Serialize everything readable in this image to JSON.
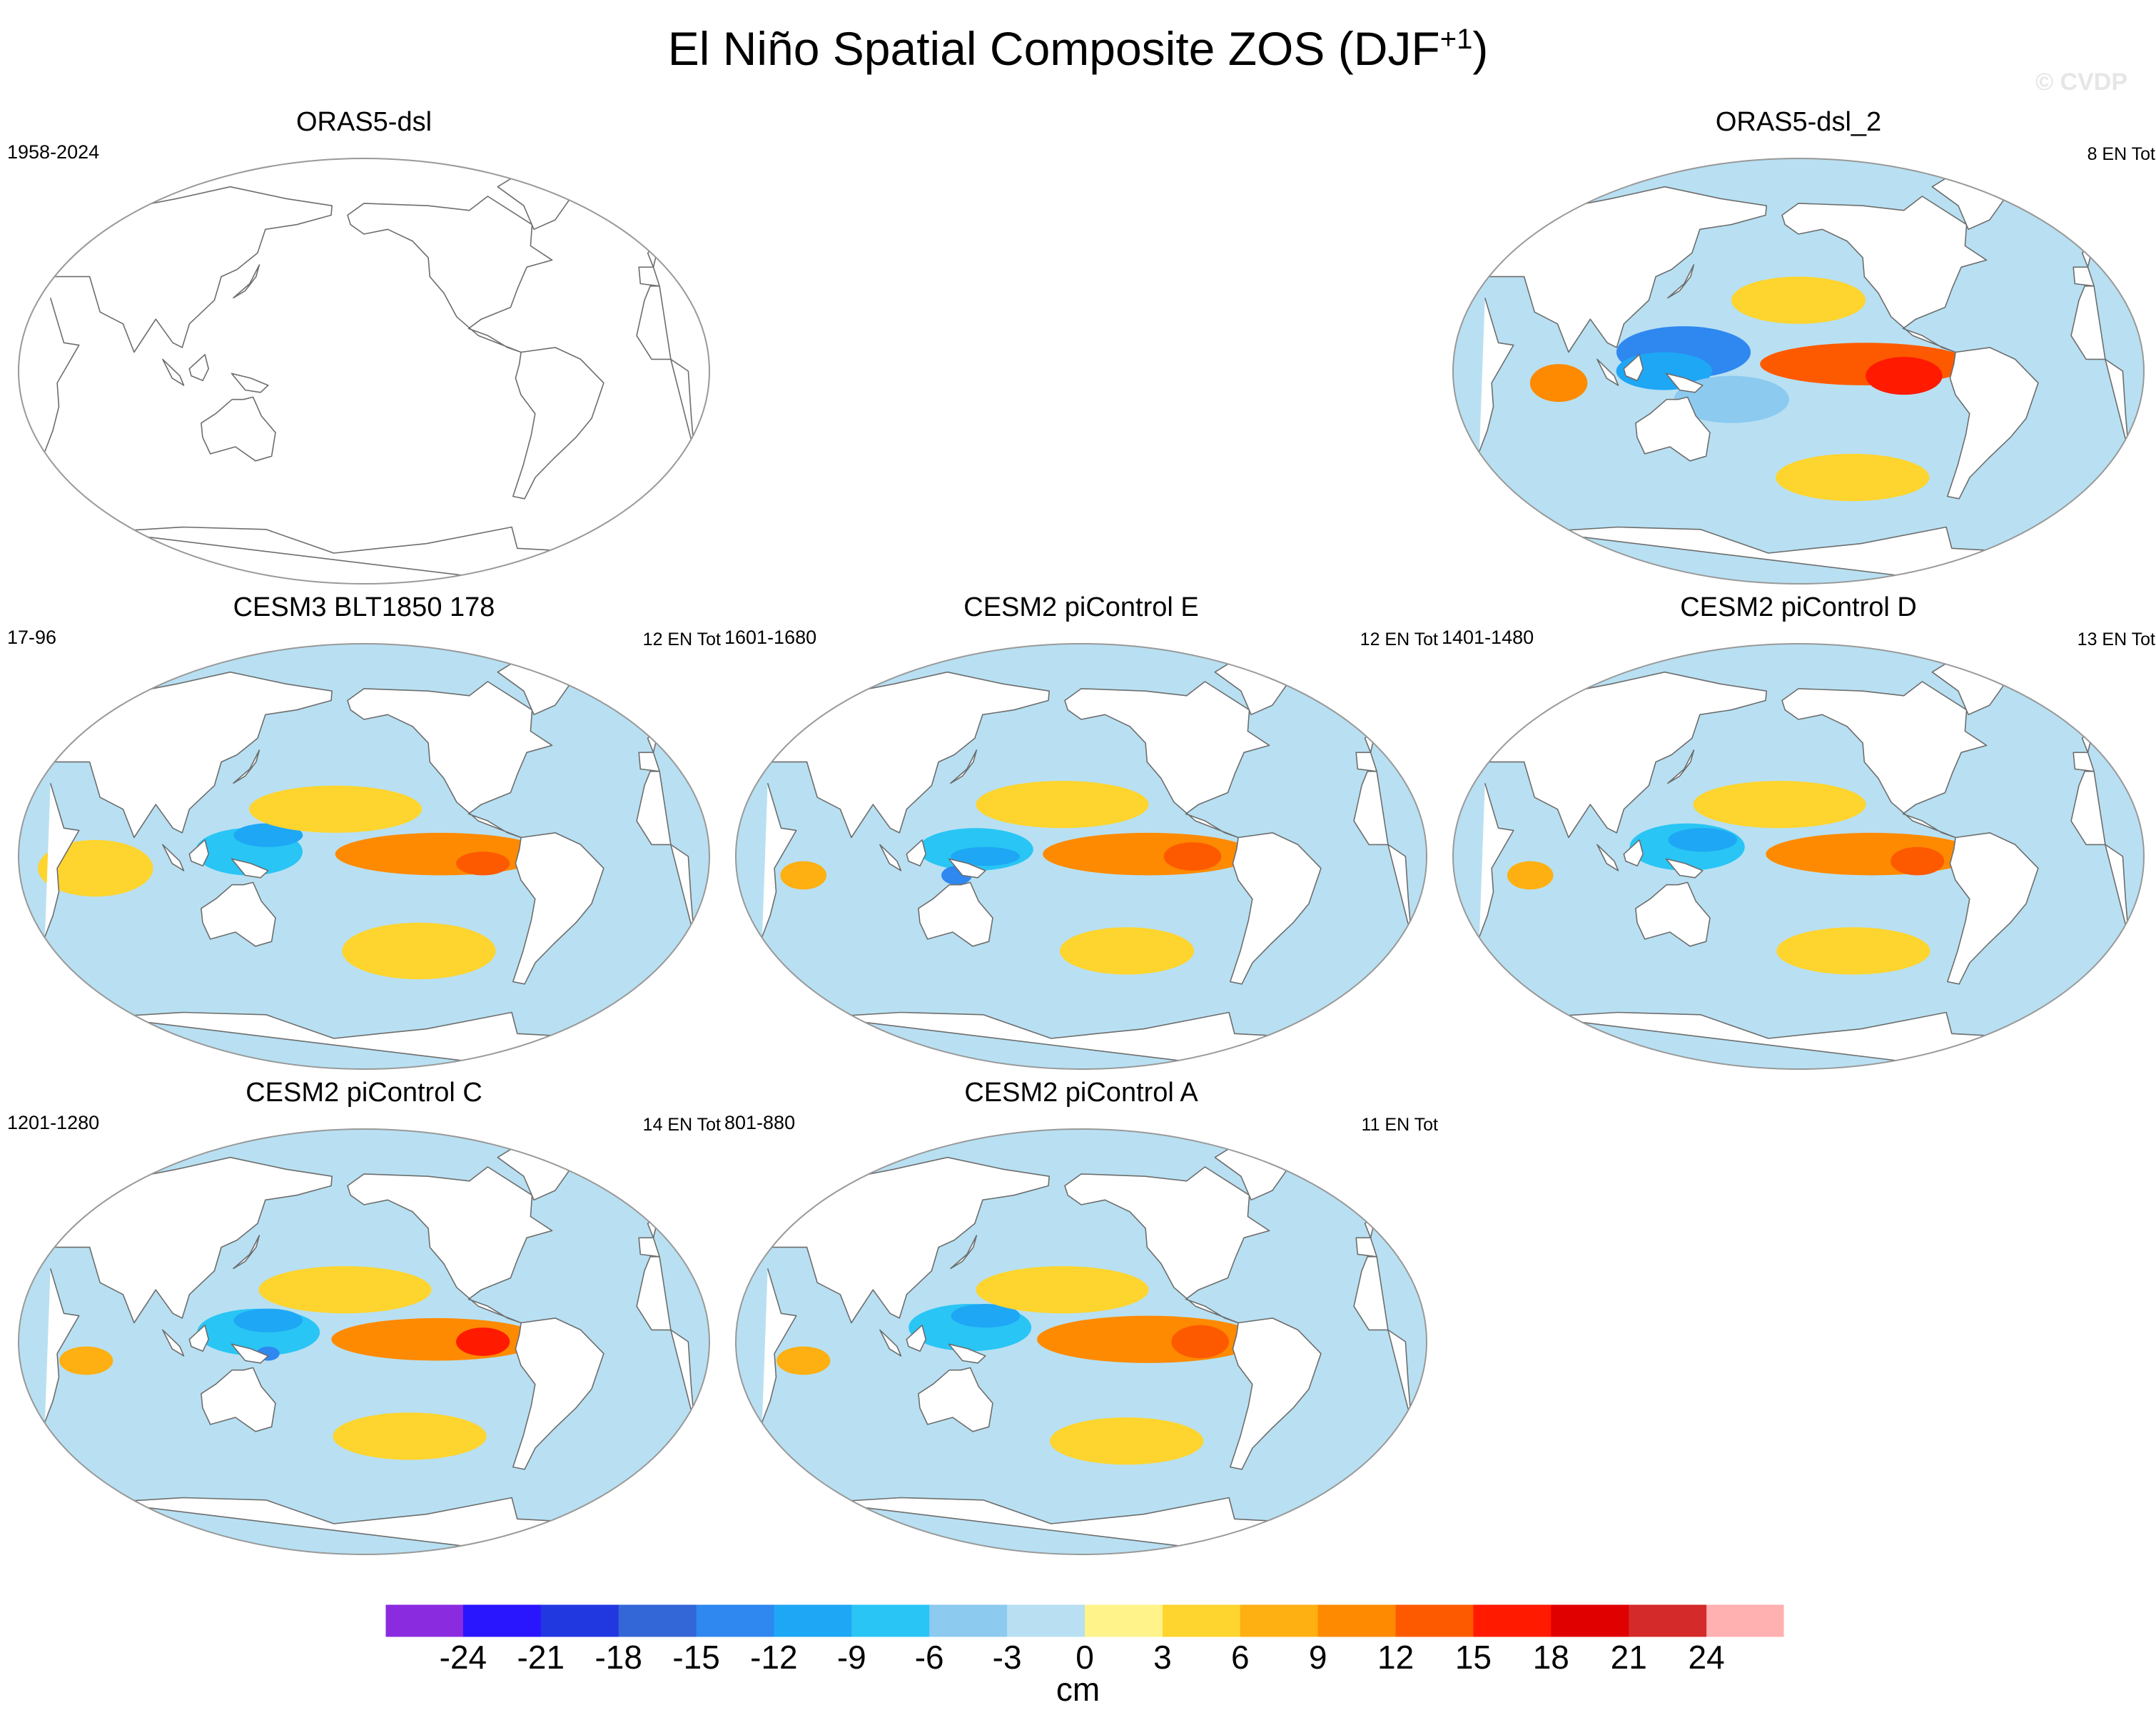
{
  "title": "El Niño Spatial Composite ZOS (DJF",
  "title_sup": "+1",
  "title_close": ")",
  "watermark": "© CVDP",
  "units": "cm",
  "colors": {
    "levels": [
      "#8b2be0",
      "#2a15ff",
      "#2138e0",
      "#3366d6",
      "#2f87f0",
      "#1ea7f5",
      "#29c5f5",
      "#8ccaf0",
      "#b8e0f2",
      "#fff38a",
      "#fed42e",
      "#feaf11",
      "#fd8a00",
      "#fd5a00",
      "#ff1a00",
      "#e00000",
      "#d42a2a",
      "#ffb0b0"
    ],
    "land": "#ffffff",
    "coast": "#6d6d6d",
    "frame": "#999999"
  },
  "chart_data": {
    "type": "heatmap",
    "projection": "robinson",
    "variable": "ZOS",
    "season": "DJF+1",
    "colorbar": {
      "ticks": [
        -24,
        -21,
        -18,
        -15,
        -12,
        -9,
        -6,
        -3,
        0,
        3,
        6,
        9,
        12,
        15,
        18,
        21,
        24
      ],
      "labels": [
        "-24",
        "-21",
        "-18",
        "-15",
        "-12",
        "-9",
        "-6",
        "-3",
        "0",
        "3",
        "6",
        "9",
        "12",
        "15",
        "18",
        "21",
        "24"
      ],
      "units": "cm"
    },
    "panels": [
      {
        "name": "ORAS5-dsl",
        "left": "1958-2024",
        "right": "",
        "empty": true,
        "features": []
      },
      {
        "name": "ORAS5-dsl_2",
        "left": "",
        "right": "8 EN Tot",
        "empty": false,
        "features": [
          {
            "lon": 235,
            "lat": 3,
            "value": 12,
            "wlon": 55,
            "wlat": 9
          },
          {
            "lon": 255,
            "lat": -2,
            "value": 15,
            "wlon": 20,
            "wlat": 8
          },
          {
            "lon": 140,
            "lat": 8,
            "value": -15,
            "wlon": 35,
            "wlat": 11
          },
          {
            "lon": 130,
            "lat": 0,
            "value": -12,
            "wlon": 25,
            "wlat": 8
          },
          {
            "lon": 165,
            "lat": -12,
            "value": -6,
            "wlon": 30,
            "wlat": 10
          },
          {
            "lon": 75,
            "lat": -5,
            "value": 9,
            "wlon": 15,
            "wlat": 8
          },
          {
            "lon": 200,
            "lat": 30,
            "value": 3,
            "wlon": 35,
            "wlat": 10
          },
          {
            "lon": 230,
            "lat": -45,
            "value": 3,
            "wlon": 40,
            "wlat": 10
          },
          {
            "lon": 330,
            "lat": -5,
            "value": -3,
            "wlon": 25,
            "wlat": 12
          }
        ]
      },
      {
        "name": "CESM3 BLT1850 178",
        "left": "17-96",
        "right": "12 EN Tot",
        "empty": false,
        "features": [
          {
            "lon": 240,
            "lat": 1,
            "value": 9,
            "wlon": 55,
            "wlat": 9
          },
          {
            "lon": 262,
            "lat": -3,
            "value": 12,
            "wlon": 14,
            "wlat": 5
          },
          {
            "lon": 140,
            "lat": 2,
            "value": -9,
            "wlon": 28,
            "wlat": 10
          },
          {
            "lon": 150,
            "lat": 9,
            "value": -12,
            "wlon": 18,
            "wlat": 5
          },
          {
            "lon": 185,
            "lat": 20,
            "value": 3,
            "wlon": 45,
            "wlat": 10
          },
          {
            "lon": 160,
            "lat": -18,
            "value": -3,
            "wlon": 40,
            "wlat": 10
          },
          {
            "lon": 60,
            "lat": -5,
            "value": 3,
            "wlon": 30,
            "wlat": 12
          },
          {
            "lon": 230,
            "lat": -40,
            "value": 3,
            "wlon": 40,
            "wlat": 12
          }
        ]
      },
      {
        "name": "CESM2 piControl E",
        "left": "1601-1680",
        "right": "12 EN Tot",
        "empty": false,
        "features": [
          {
            "lon": 235,
            "lat": 1,
            "value": 9,
            "wlon": 55,
            "wlat": 9
          },
          {
            "lon": 258,
            "lat": 0,
            "value": 12,
            "wlon": 15,
            "wlat": 6
          },
          {
            "lon": 145,
            "lat": 3,
            "value": -9,
            "wlon": 30,
            "wlat": 9
          },
          {
            "lon": 150,
            "lat": 0,
            "value": -12,
            "wlon": 18,
            "wlat": 4
          },
          {
            "lon": 135,
            "lat": -8,
            "value": -15,
            "wlon": 8,
            "wlat": 4
          },
          {
            "lon": 55,
            "lat": -8,
            "value": 6,
            "wlon": 12,
            "wlat": 6
          },
          {
            "lon": 190,
            "lat": 22,
            "value": 3,
            "wlon": 45,
            "wlat": 10
          },
          {
            "lon": 225,
            "lat": -40,
            "value": 3,
            "wlon": 35,
            "wlat": 10
          }
        ]
      },
      {
        "name": "CESM2 piControl D",
        "left": "1401-1480",
        "right": "13 EN Tot",
        "empty": false,
        "features": [
          {
            "lon": 238,
            "lat": 1,
            "value": 9,
            "wlon": 55,
            "wlat": 9
          },
          {
            "lon": 262,
            "lat": -2,
            "value": 12,
            "wlon": 14,
            "wlat": 6
          },
          {
            "lon": 142,
            "lat": 4,
            "value": -9,
            "wlon": 30,
            "wlat": 10
          },
          {
            "lon": 150,
            "lat": 7,
            "value": -12,
            "wlon": 18,
            "wlat": 5
          },
          {
            "lon": 60,
            "lat": -8,
            "value": 6,
            "wlon": 12,
            "wlat": 6
          },
          {
            "lon": 190,
            "lat": 22,
            "value": 3,
            "wlon": 45,
            "wlat": 10
          },
          {
            "lon": 230,
            "lat": -40,
            "value": 3,
            "wlon": 40,
            "wlat": 10
          }
        ]
      },
      {
        "name": "CESM2 piControl C",
        "left": "1201-1280",
        "right": "14 EN Tot",
        "empty": false,
        "features": [
          {
            "lon": 238,
            "lat": 1,
            "value": 9,
            "wlon": 55,
            "wlat": 9
          },
          {
            "lon": 262,
            "lat": 0,
            "value": 15,
            "wlon": 14,
            "wlat": 6
          },
          {
            "lon": 145,
            "lat": 4,
            "value": -9,
            "wlon": 32,
            "wlat": 10
          },
          {
            "lon": 150,
            "lat": 9,
            "value": -12,
            "wlon": 18,
            "wlat": 5
          },
          {
            "lon": 150,
            "lat": -5,
            "value": -15,
            "wlon": 6,
            "wlat": 3
          },
          {
            "lon": 55,
            "lat": -8,
            "value": 6,
            "wlon": 14,
            "wlat": 6
          },
          {
            "lon": 190,
            "lat": 22,
            "value": 3,
            "wlon": 45,
            "wlat": 10
          },
          {
            "lon": 225,
            "lat": -40,
            "value": 3,
            "wlon": 40,
            "wlat": 10
          }
        ]
      },
      {
        "name": "CESM2 piControl A",
        "left": "801-880",
        "right": "11 EN Tot",
        "empty": false,
        "features": [
          {
            "lon": 235,
            "lat": 1,
            "value": 9,
            "wlon": 58,
            "wlat": 10
          },
          {
            "lon": 262,
            "lat": 0,
            "value": 12,
            "wlon": 15,
            "wlat": 7
          },
          {
            "lon": 142,
            "lat": 6,
            "value": -9,
            "wlon": 32,
            "wlat": 10
          },
          {
            "lon": 150,
            "lat": 11,
            "value": -12,
            "wlon": 18,
            "wlat": 5
          },
          {
            "lon": 55,
            "lat": -8,
            "value": 6,
            "wlon": 14,
            "wlat": 6
          },
          {
            "lon": 190,
            "lat": 22,
            "value": 3,
            "wlon": 45,
            "wlat": 10
          },
          {
            "lon": 225,
            "lat": -42,
            "value": 3,
            "wlon": 40,
            "wlat": 10
          }
        ]
      }
    ]
  }
}
